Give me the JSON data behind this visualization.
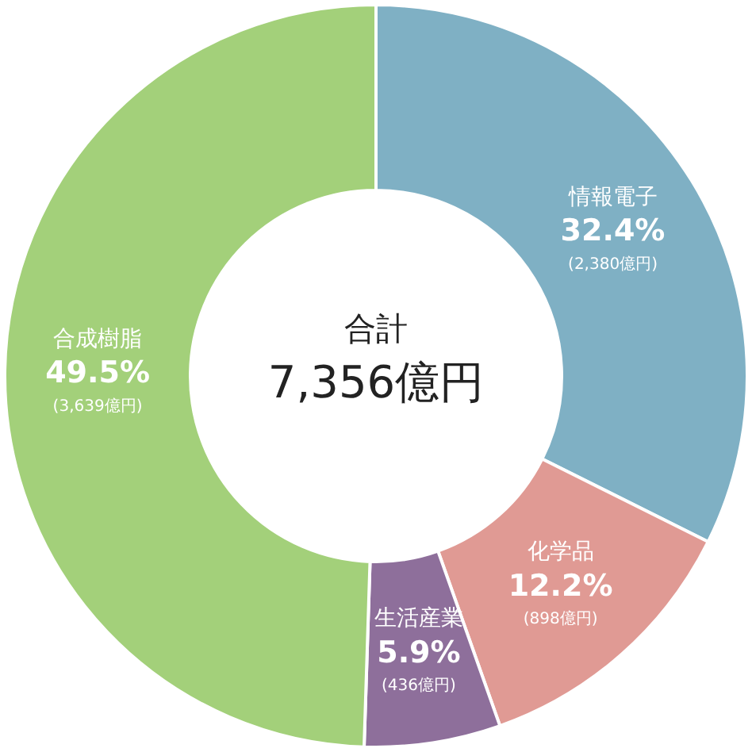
{
  "chart_data": {
    "type": "donut",
    "title": "合計",
    "subtitle": "7,356億円",
    "categories": [
      "情報電子",
      "化学品",
      "生活産業",
      "合成樹脂"
    ],
    "values": [
      2380,
      898,
      436,
      3639
    ],
    "colors": [
      "#7fb0c4",
      "#e09a94",
      "#8e6f9b",
      "#a3d07a"
    ],
    "value_labels": [
      "32.4%\n(2,380億円)",
      "12.2%\n(898億円)",
      "5.9%\n(436億円)",
      "49.5%\n(3,639億円)"
    ],
    "legend": false
  }
}
